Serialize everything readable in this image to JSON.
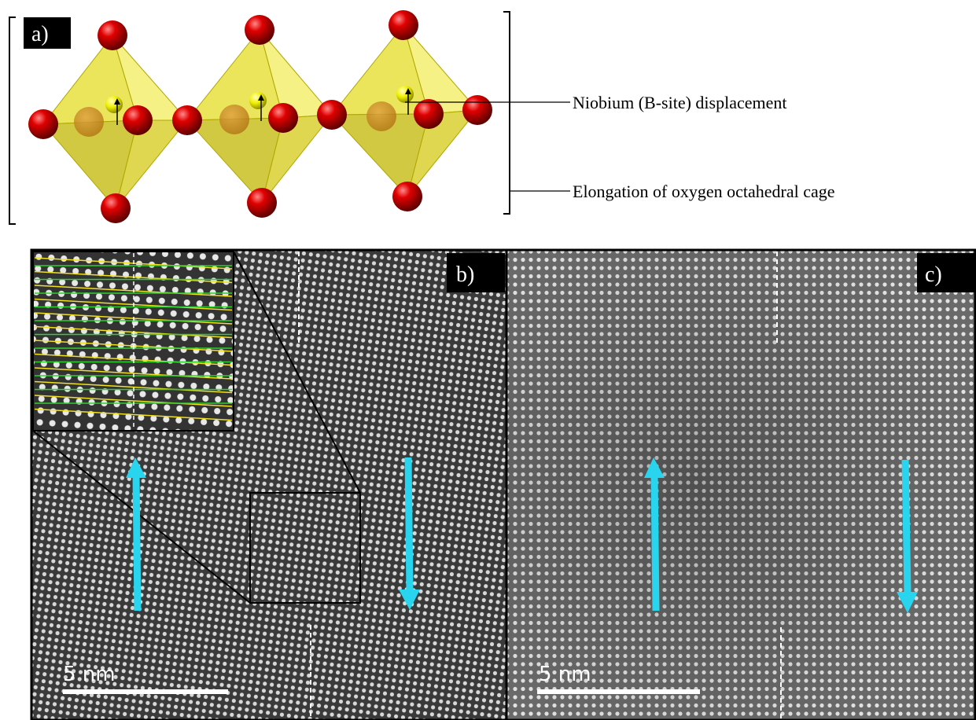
{
  "panel_a": {
    "label": "a)",
    "annotations": [
      "Niobium (B-site) displacement",
      "Elongation of oxygen octahedral cage"
    ]
  },
  "panel_b": {
    "label": "b)",
    "scale_bar": "5 nm"
  },
  "panel_c": {
    "label": "c)",
    "scale_bar": "5 nm"
  }
}
